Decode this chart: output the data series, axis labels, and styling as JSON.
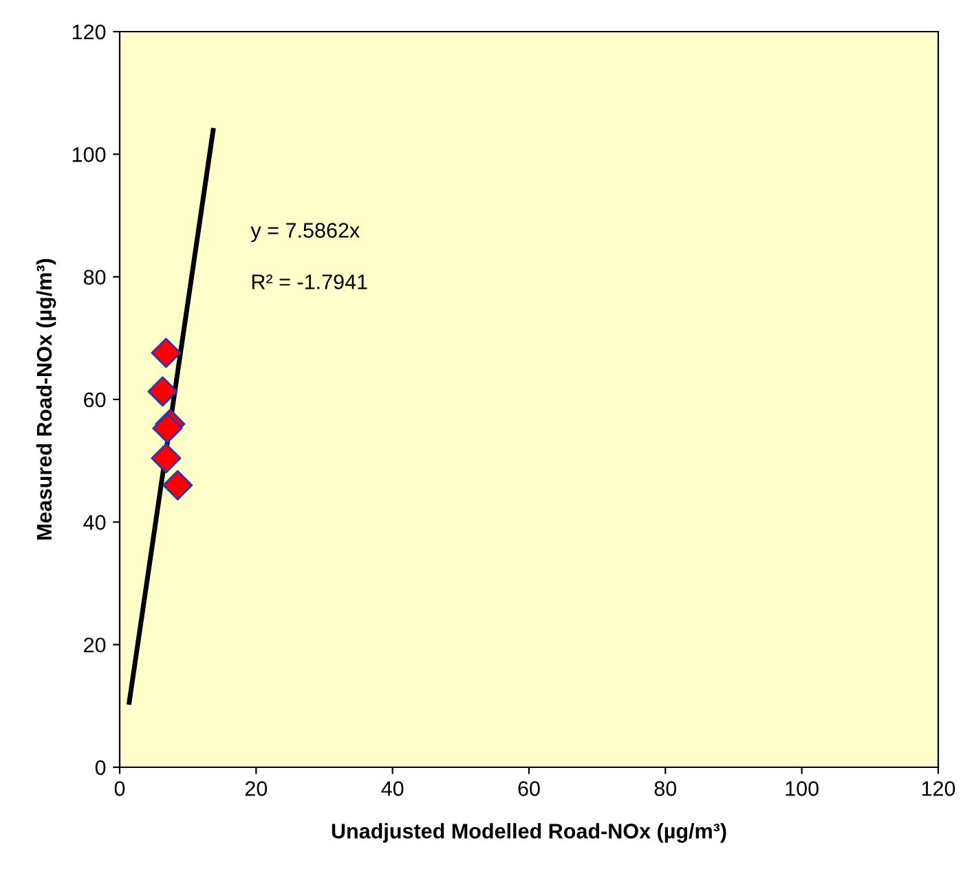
{
  "chart_data": {
    "type": "scatter",
    "xlabel": "Unadjusted Modelled Road-NOx (µg/m³)",
    "ylabel": "Measured Road-NOx (µg/m³)",
    "annotations": [
      "y = 7.5862x",
      "R² = -1.7941"
    ],
    "series": [
      {
        "color": "#ff0000",
        "marker": "diamond",
        "x": [
          6.8,
          6.3,
          7.4,
          7.0,
          6.8,
          8.5
        ],
        "values": [
          67.6,
          61.3,
          56.0,
          55.3,
          50.4,
          46.0
        ]
      },
      {
        "type": "line",
        "color": "#000000",
        "marker": "none",
        "line_style": "solid",
        "x": [
          1.4,
          13.7
        ],
        "values": [
          10.6,
          103.9
        ]
      }
    ],
    "xlim": [
      0,
      120
    ],
    "ylim": [
      0,
      120
    ],
    "xticks": [
      0,
      20,
      40,
      60,
      80,
      100,
      120
    ],
    "yticks": [
      0,
      20,
      40,
      60,
      80,
      100,
      120
    ],
    "grid": false,
    "legend": false
  }
}
